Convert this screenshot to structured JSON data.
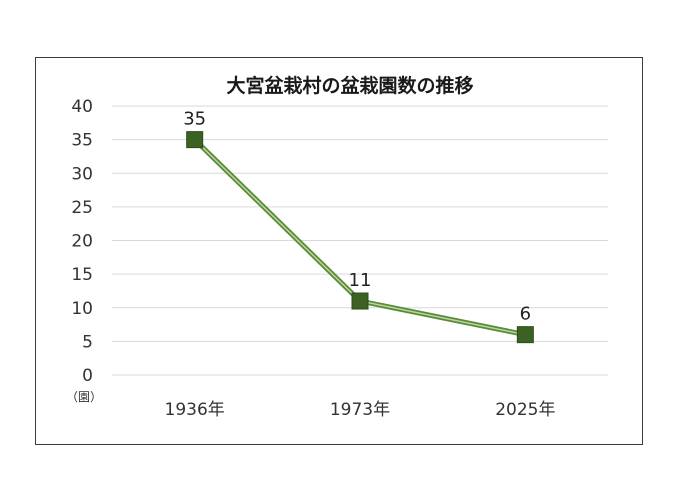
{
  "chart_data": {
    "type": "line",
    "title": "大宮盆栽村の盆栽園数の推移",
    "categories": [
      "1936年",
      "1973年",
      "2025年"
    ],
    "series": [
      {
        "values": [
          35,
          11,
          6
        ]
      }
    ],
    "data_labels": [
      "35",
      "11",
      "6"
    ],
    "y_ticks": [
      "0",
      "5",
      "10",
      "15",
      "20",
      "25",
      "30",
      "35",
      "40"
    ],
    "y_unit": "（園）",
    "ylim": [
      0,
      40
    ],
    "grid": true,
    "legend": "none",
    "colors": {
      "line": "#5a8a3a",
      "line_highlight": "#b9d79a",
      "marker": "#3b6222",
      "grid": "#d9d9d9"
    }
  }
}
